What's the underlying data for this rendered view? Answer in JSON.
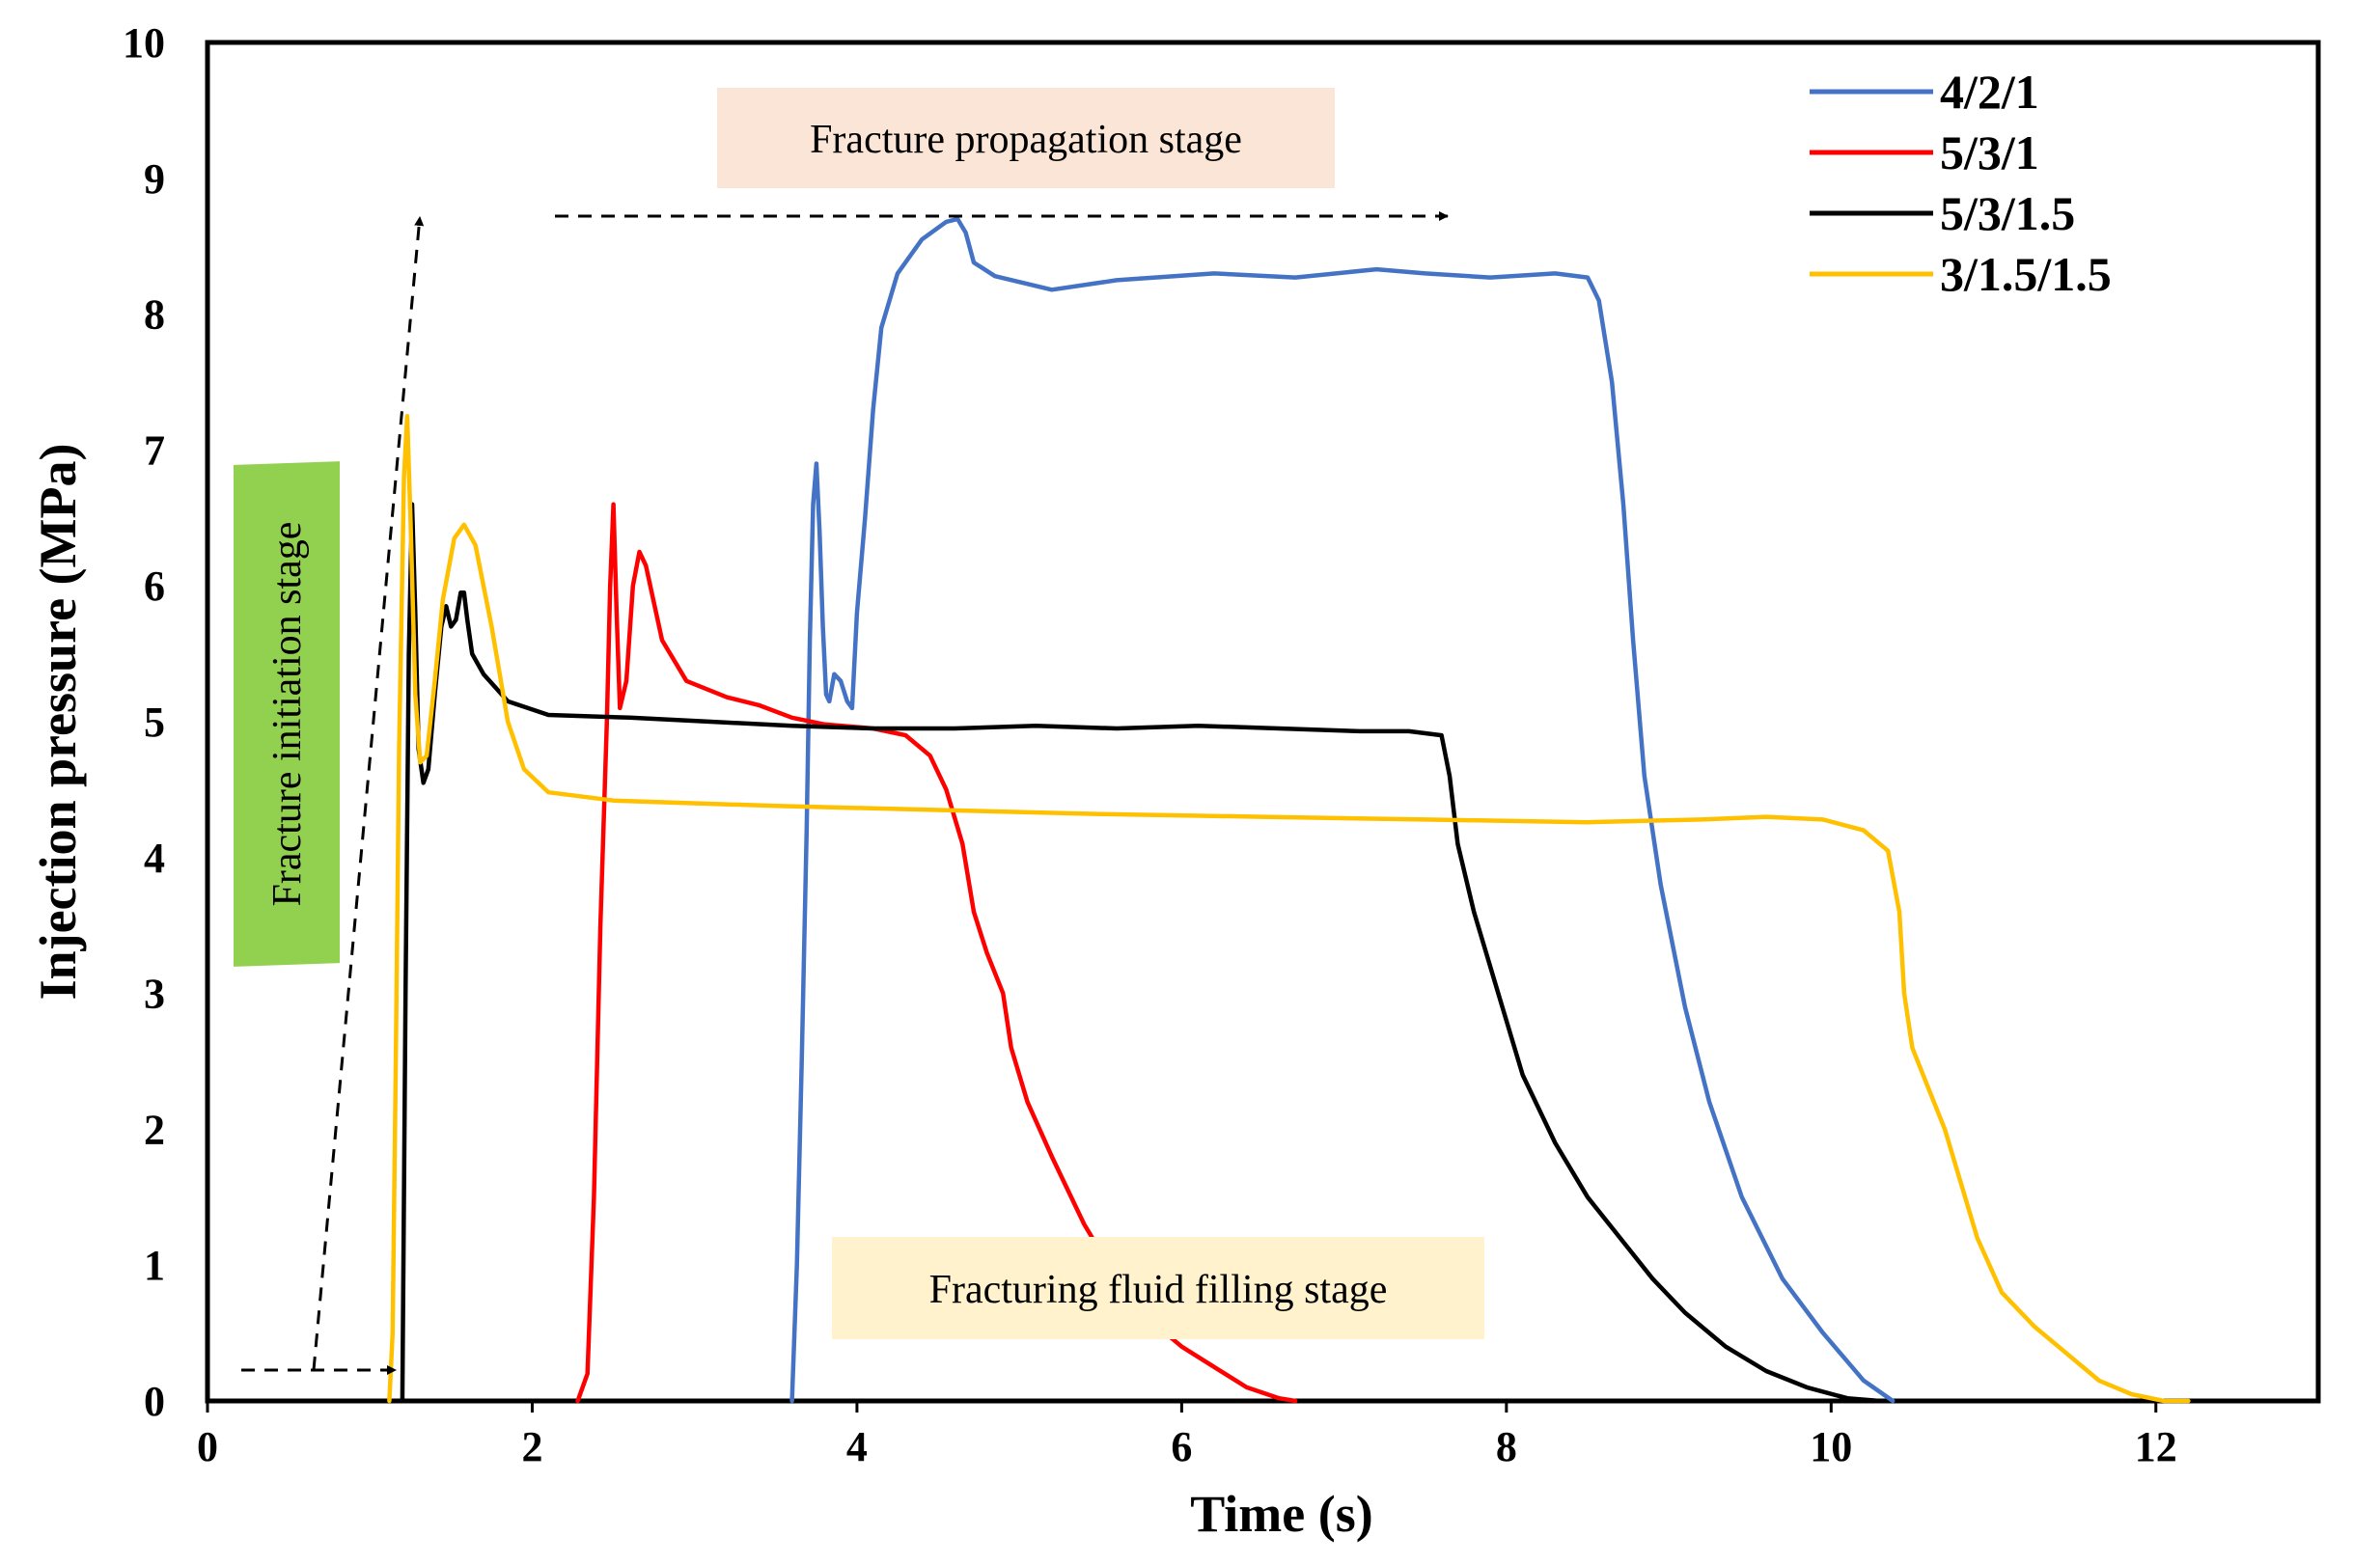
{
  "chart_data": {
    "type": "line",
    "title": "",
    "xlabel": "Time (s)",
    "ylabel": "Injection pressure  (MPa)",
    "xlim": [
      0,
      13
    ],
    "ylim": [
      0,
      10
    ],
    "xticks": [
      0,
      2,
      4,
      6,
      8,
      10,
      12
    ],
    "yticks": [
      0,
      1,
      2,
      3,
      4,
      5,
      6,
      7,
      8,
      9,
      10
    ],
    "grid": false,
    "legend_position": "top-right",
    "series": [
      {
        "name": "4/2/1",
        "color": "#4472C4",
        "points": [
          [
            3.6,
            0
          ],
          [
            3.63,
            1
          ],
          [
            3.66,
            2.5
          ],
          [
            3.69,
            4.2
          ],
          [
            3.71,
            5.6
          ],
          [
            3.73,
            6.6
          ],
          [
            3.75,
            6.9
          ],
          [
            3.77,
            6.4
          ],
          [
            3.79,
            5.7
          ],
          [
            3.81,
            5.2
          ],
          [
            3.83,
            5.15
          ],
          [
            3.86,
            5.35
          ],
          [
            3.9,
            5.3
          ],
          [
            3.94,
            5.15
          ],
          [
            3.97,
            5.1
          ],
          [
            4.0,
            5.8
          ],
          [
            4.05,
            6.5
          ],
          [
            4.1,
            7.3
          ],
          [
            4.15,
            7.9
          ],
          [
            4.25,
            8.3
          ],
          [
            4.4,
            8.55
          ],
          [
            4.55,
            8.68
          ],
          [
            4.62,
            8.7
          ],
          [
            4.67,
            8.6
          ],
          [
            4.72,
            8.38
          ],
          [
            4.85,
            8.28
          ],
          [
            5.2,
            8.18
          ],
          [
            5.6,
            8.25
          ],
          [
            6.2,
            8.3
          ],
          [
            6.7,
            8.27
          ],
          [
            7.2,
            8.33
          ],
          [
            7.5,
            8.3
          ],
          [
            7.9,
            8.27
          ],
          [
            8.3,
            8.3
          ],
          [
            8.5,
            8.27
          ],
          [
            8.57,
            8.1
          ],
          [
            8.65,
            7.5
          ],
          [
            8.72,
            6.6
          ],
          [
            8.78,
            5.6
          ],
          [
            8.85,
            4.6
          ],
          [
            8.95,
            3.8
          ],
          [
            9.1,
            2.9
          ],
          [
            9.25,
            2.2
          ],
          [
            9.45,
            1.5
          ],
          [
            9.7,
            0.9
          ],
          [
            9.95,
            0.5
          ],
          [
            10.2,
            0.15
          ],
          [
            10.38,
            0
          ]
        ]
      },
      {
        "name": "5/3/1",
        "color": "#FF0000",
        "points": [
          [
            2.28,
            0
          ],
          [
            2.34,
            0.2
          ],
          [
            2.38,
            1.5
          ],
          [
            2.42,
            3.5
          ],
          [
            2.46,
            5.0
          ],
          [
            2.48,
            6.0
          ],
          [
            2.5,
            6.6
          ],
          [
            2.52,
            5.8
          ],
          [
            2.54,
            5.1
          ],
          [
            2.58,
            5.3
          ],
          [
            2.62,
            6.0
          ],
          [
            2.66,
            6.25
          ],
          [
            2.7,
            6.15
          ],
          [
            2.8,
            5.6
          ],
          [
            2.95,
            5.3
          ],
          [
            3.2,
            5.18
          ],
          [
            3.4,
            5.12
          ],
          [
            3.6,
            5.03
          ],
          [
            3.8,
            4.98
          ],
          [
            4.1,
            4.95
          ],
          [
            4.3,
            4.9
          ],
          [
            4.45,
            4.75
          ],
          [
            4.55,
            4.5
          ],
          [
            4.65,
            4.1
          ],
          [
            4.72,
            3.6
          ],
          [
            4.8,
            3.3
          ],
          [
            4.9,
            3.0
          ],
          [
            4.95,
            2.6
          ],
          [
            5.05,
            2.2
          ],
          [
            5.2,
            1.8
          ],
          [
            5.4,
            1.3
          ],
          [
            5.6,
            0.9
          ],
          [
            5.8,
            0.6
          ],
          [
            6.0,
            0.4
          ],
          [
            6.2,
            0.25
          ],
          [
            6.4,
            0.1
          ],
          [
            6.6,
            0.02
          ],
          [
            6.7,
            0
          ]
        ]
      },
      {
        "name": "5/3/1.5",
        "color": "#000000",
        "points": [
          [
            1.2,
            0
          ],
          [
            1.22,
            3.0
          ],
          [
            1.24,
            5.5
          ],
          [
            1.26,
            6.6
          ],
          [
            1.28,
            5.8
          ],
          [
            1.3,
            4.8
          ],
          [
            1.33,
            4.55
          ],
          [
            1.36,
            4.65
          ],
          [
            1.4,
            5.2
          ],
          [
            1.44,
            5.7
          ],
          [
            1.47,
            5.85
          ],
          [
            1.5,
            5.7
          ],
          [
            1.53,
            5.75
          ],
          [
            1.56,
            5.95
          ],
          [
            1.58,
            5.95
          ],
          [
            1.6,
            5.75
          ],
          [
            1.63,
            5.5
          ],
          [
            1.7,
            5.35
          ],
          [
            1.85,
            5.15
          ],
          [
            2.1,
            5.05
          ],
          [
            2.6,
            5.03
          ],
          [
            3.1,
            5.0
          ],
          [
            3.6,
            4.97
          ],
          [
            4.1,
            4.95
          ],
          [
            4.6,
            4.95
          ],
          [
            5.1,
            4.97
          ],
          [
            5.6,
            4.95
          ],
          [
            6.1,
            4.97
          ],
          [
            6.6,
            4.95
          ],
          [
            7.1,
            4.93
          ],
          [
            7.4,
            4.93
          ],
          [
            7.6,
            4.9
          ],
          [
            7.65,
            4.6
          ],
          [
            7.7,
            4.1
          ],
          [
            7.8,
            3.6
          ],
          [
            7.95,
            3.0
          ],
          [
            8.1,
            2.4
          ],
          [
            8.3,
            1.9
          ],
          [
            8.5,
            1.5
          ],
          [
            8.7,
            1.2
          ],
          [
            8.9,
            0.9
          ],
          [
            9.1,
            0.65
          ],
          [
            9.35,
            0.4
          ],
          [
            9.6,
            0.22
          ],
          [
            9.85,
            0.1
          ],
          [
            10.1,
            0.02
          ],
          [
            10.3,
            0
          ]
        ]
      },
      {
        "name": "3/1.5/1.5",
        "color": "#FFC000",
        "points": [
          [
            1.12,
            0
          ],
          [
            1.14,
            0.5
          ],
          [
            1.16,
            2.5
          ],
          [
            1.18,
            4.8
          ],
          [
            1.21,
            6.8
          ],
          [
            1.23,
            7.25
          ],
          [
            1.25,
            6.5
          ],
          [
            1.28,
            5.2
          ],
          [
            1.31,
            4.7
          ],
          [
            1.35,
            4.75
          ],
          [
            1.4,
            5.3
          ],
          [
            1.45,
            5.9
          ],
          [
            1.52,
            6.35
          ],
          [
            1.58,
            6.45
          ],
          [
            1.65,
            6.3
          ],
          [
            1.75,
            5.7
          ],
          [
            1.85,
            5.0
          ],
          [
            1.95,
            4.65
          ],
          [
            2.1,
            4.48
          ],
          [
            2.5,
            4.42
          ],
          [
            3.5,
            4.38
          ],
          [
            4.5,
            4.35
          ],
          [
            5.5,
            4.32
          ],
          [
            6.5,
            4.3
          ],
          [
            7.5,
            4.28
          ],
          [
            8.5,
            4.26
          ],
          [
            9.2,
            4.28
          ],
          [
            9.6,
            4.3
          ],
          [
            9.95,
            4.28
          ],
          [
            10.2,
            4.2
          ],
          [
            10.35,
            4.05
          ],
          [
            10.42,
            3.6
          ],
          [
            10.45,
            3.0
          ],
          [
            10.5,
            2.6
          ],
          [
            10.6,
            2.3
          ],
          [
            10.7,
            2.0
          ],
          [
            10.8,
            1.6
          ],
          [
            10.9,
            1.2
          ],
          [
            11.05,
            0.8
          ],
          [
            11.25,
            0.55
          ],
          [
            11.45,
            0.35
          ],
          [
            11.65,
            0.15
          ],
          [
            11.85,
            0.05
          ],
          [
            12.05,
            0
          ],
          [
            12.2,
            0
          ]
        ]
      }
    ],
    "annotations": [
      {
        "id": "propagation",
        "text": "Fracture propagation stage"
      },
      {
        "id": "initiation",
        "text": "Fracture initiation stage"
      },
      {
        "id": "filling",
        "text": "Fracturing fluid filling stage"
      }
    ]
  }
}
